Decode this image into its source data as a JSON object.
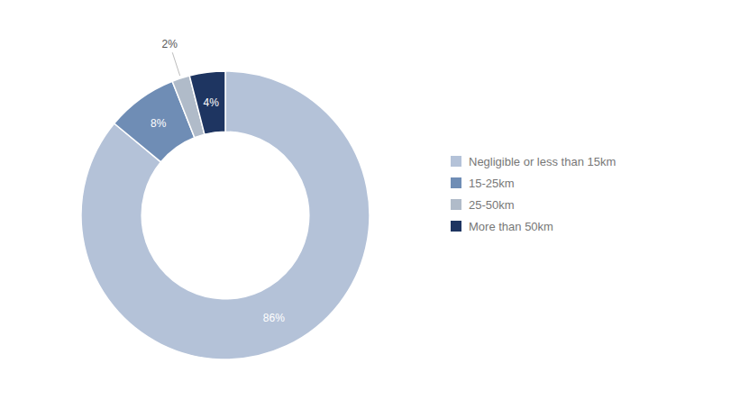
{
  "chart_data": {
    "type": "donut",
    "categories": [
      "Negligible or less than 15km",
      "15-25km",
      "25-50km",
      "More than 50km"
    ],
    "values": [
      86,
      8,
      2,
      4
    ],
    "value_labels": [
      "86%",
      "8%",
      "2%",
      "4%"
    ],
    "colors": [
      "#b4c2d8",
      "#6f8db5",
      "#b0bbc9",
      "#1e3561"
    ],
    "data_labels": true,
    "legend": "right"
  }
}
